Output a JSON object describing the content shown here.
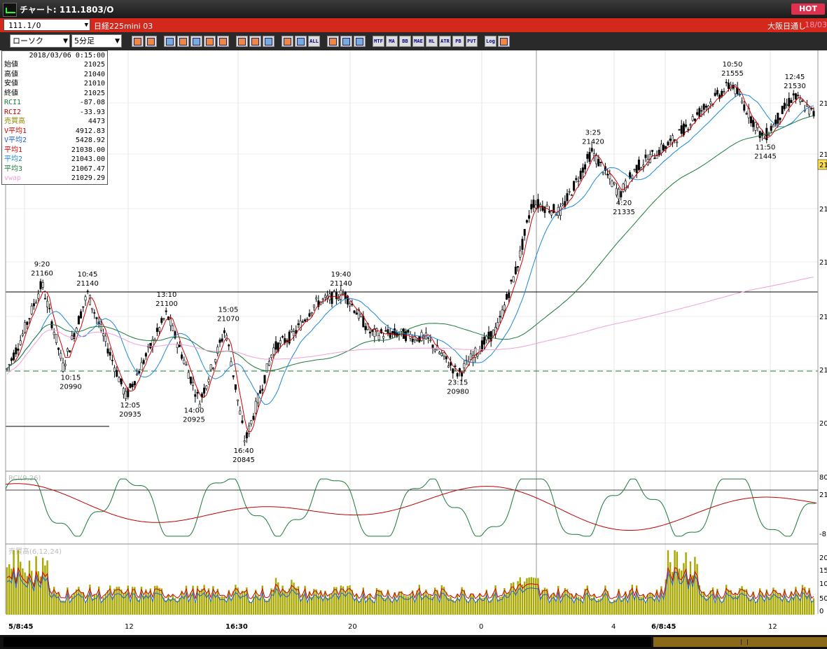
{
  "window": {
    "title": "チャート: 111.1803/O",
    "hot_label": "HOT"
  },
  "symbol_bar": {
    "code": "111.1/O",
    "name": "日経225mini 03",
    "exchange": "大阪日通し",
    "date_short": "18/03"
  },
  "toolbar": {
    "chart_type": "ローソク",
    "timeframe": "5分足",
    "buttons": [
      "search",
      "window",
      "zoom-in",
      "zoom-out",
      "chart",
      "move",
      "grid",
      "draw",
      "cursor",
      "arrow",
      "bar-left",
      "bar-right",
      "all",
      "settings",
      "brush",
      "palette",
      "mtf",
      "ma",
      "bb",
      "mae",
      "hl",
      "atr",
      "pb",
      "pvt",
      "log",
      "export"
    ],
    "button_labels": {
      "all": "ALL",
      "mtf": "MTF",
      "ma": "MA",
      "bb": "BB",
      "mae": "MAE",
      "hl": "HL",
      "atr": "ATR",
      "pb": "PB",
      "pvt": "PVT",
      "log": "Log"
    }
  },
  "info_panel": {
    "datetime": "2018/03/06  0:15:00",
    "rows": [
      {
        "label": "始値",
        "value": "21025",
        "color": "#000000"
      },
      {
        "label": "高値",
        "value": "21040",
        "color": "#000000"
      },
      {
        "label": "安値",
        "value": "21010",
        "color": "#000000"
      },
      {
        "label": "終値",
        "value": "21025",
        "color": "#000000"
      },
      {
        "label": "RCI1",
        "value": "-87.08",
        "color": "#1a7a3a"
      },
      {
        "label": "RCI2",
        "value": "-33.93",
        "color": "#c00000"
      },
      {
        "label": "売買高",
        "value": "4473",
        "color": "#8a8a00"
      },
      {
        "label": "V平均1",
        "value": "4912.83",
        "color": "#d00000"
      },
      {
        "label": "V平均2",
        "value": "5428.92",
        "color": "#2060d0"
      },
      {
        "label": "平均1",
        "value": "21038.00",
        "color": "#d00000"
      },
      {
        "label": "平均2",
        "value": "21043.00",
        "color": "#1a88d8"
      },
      {
        "label": "平均3",
        "value": "21067.47",
        "color": "#1a7a3a"
      },
      {
        "label": "vwap",
        "value": "21029.29",
        "color": "#f0a0d8"
      }
    ]
  },
  "chart_data": {
    "type": "candlestick",
    "price_annotations": [
      {
        "time": "9:20",
        "price": "21160"
      },
      {
        "time": "10:45",
        "price": "21140"
      },
      {
        "time": "10:15",
        "price": "20990"
      },
      {
        "time": "12:05",
        "price": "20935"
      },
      {
        "time": "13:10",
        "price": "21100"
      },
      {
        "time": "14:00",
        "price": "20925"
      },
      {
        "time": "15:05",
        "price": "21070"
      },
      {
        "time": "16:40",
        "price": "20845"
      },
      {
        "time": "19:40",
        "price": "21140"
      },
      {
        "time": "23:15",
        "price": "20980"
      },
      {
        "time": "3:25",
        "price": "21420"
      },
      {
        "time": "4:20",
        "price": "21335"
      },
      {
        "time": "10:50",
        "price": "21555"
      },
      {
        "time": "11:50",
        "price": "21445"
      },
      {
        "time": "12:45",
        "price": "21530"
      }
    ],
    "x_labels": [
      "5/8:45",
      "12",
      "16:30",
      "20",
      "0",
      "4",
      "6/8:45",
      "12"
    ],
    "price_axis_labels": [
      "21",
      "21",
      "21",
      "21",
      "21",
      "21",
      "20"
    ],
    "price_axis_badge": "21",
    "rci_panel": {
      "label": "RCI(9,26)",
      "axis_labels": [
        "80",
        "21",
        "-8"
      ]
    },
    "volume_panel": {
      "label": "売買高(6,12,24)",
      "axis_labels": [
        "20",
        "15",
        "10",
        "50",
        "0"
      ]
    },
    "moving_average_colors": {
      "ma1": "#d00000",
      "ma2": "#1a88d8",
      "ma3": "#1a7a3a",
      "vwap": "#f0a0d8"
    },
    "volume_color": "#a8a800"
  }
}
